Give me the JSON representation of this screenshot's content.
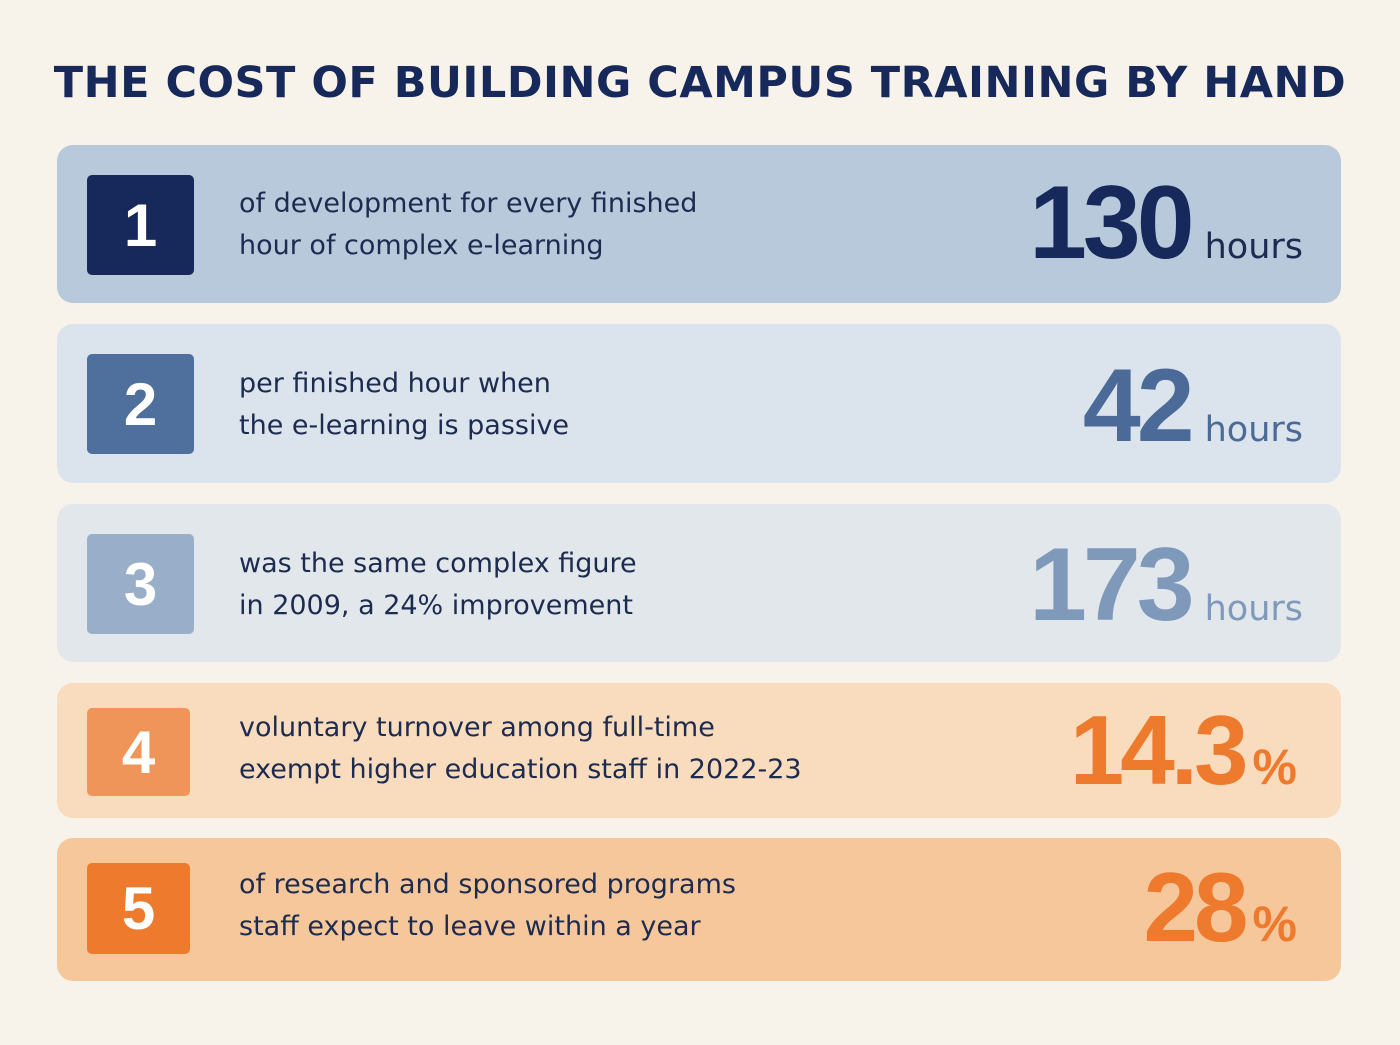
{
  "title": "THE COST OF BUILDING CAMPUS TRAINING BY HAND",
  "rows": [
    {
      "number": "1",
      "line1": "of development for every finished",
      "line2": "hour of complex e-learning",
      "value": "130",
      "unit": "hours",
      "colors": {
        "row_bg": "#b8c9dc",
        "badge_bg": "#16295a",
        "value": "#16295a",
        "unit": "#1c2b4f"
      }
    },
    {
      "number": "2",
      "line1": "per finished hour when",
      "line2": "the e-learning is passive",
      "value": "42",
      "unit": "hours",
      "colors": {
        "row_bg": "#dbe3ec",
        "badge_bg": "#4f6f9c",
        "value": "#4b6a98",
        "unit": "#4b6a98"
      }
    },
    {
      "number": "3",
      "line1": "was the same complex figure",
      "line2": "in 2009, a 24% improvement",
      "value": "173",
      "unit": "hours",
      "colors": {
        "row_bg": "#e2e7ec",
        "badge_bg": "#99aec9",
        "value": "#7f99bb",
        "unit": "#7f99bb"
      }
    },
    {
      "number": "4",
      "line1": "voluntary turnover among full-time",
      "line2": "exempt higher education staff in 2022-23",
      "value": "14.3",
      "unit": "%",
      "colors": {
        "row_bg": "#f9dcbd",
        "badge_bg": "#f0955a",
        "value": "#ee7a2e",
        "unit": "#ee7a2e"
      }
    },
    {
      "number": "5",
      "line1": "of research and sponsored programs",
      "line2": "staff expect to leave within a year",
      "value": "28",
      "unit": "%",
      "colors": {
        "row_bg": "#f6c79b",
        "badge_bg": "#ee7a2e",
        "value": "#ee7a2e",
        "unit": "#ee7a2e"
      }
    }
  ]
}
